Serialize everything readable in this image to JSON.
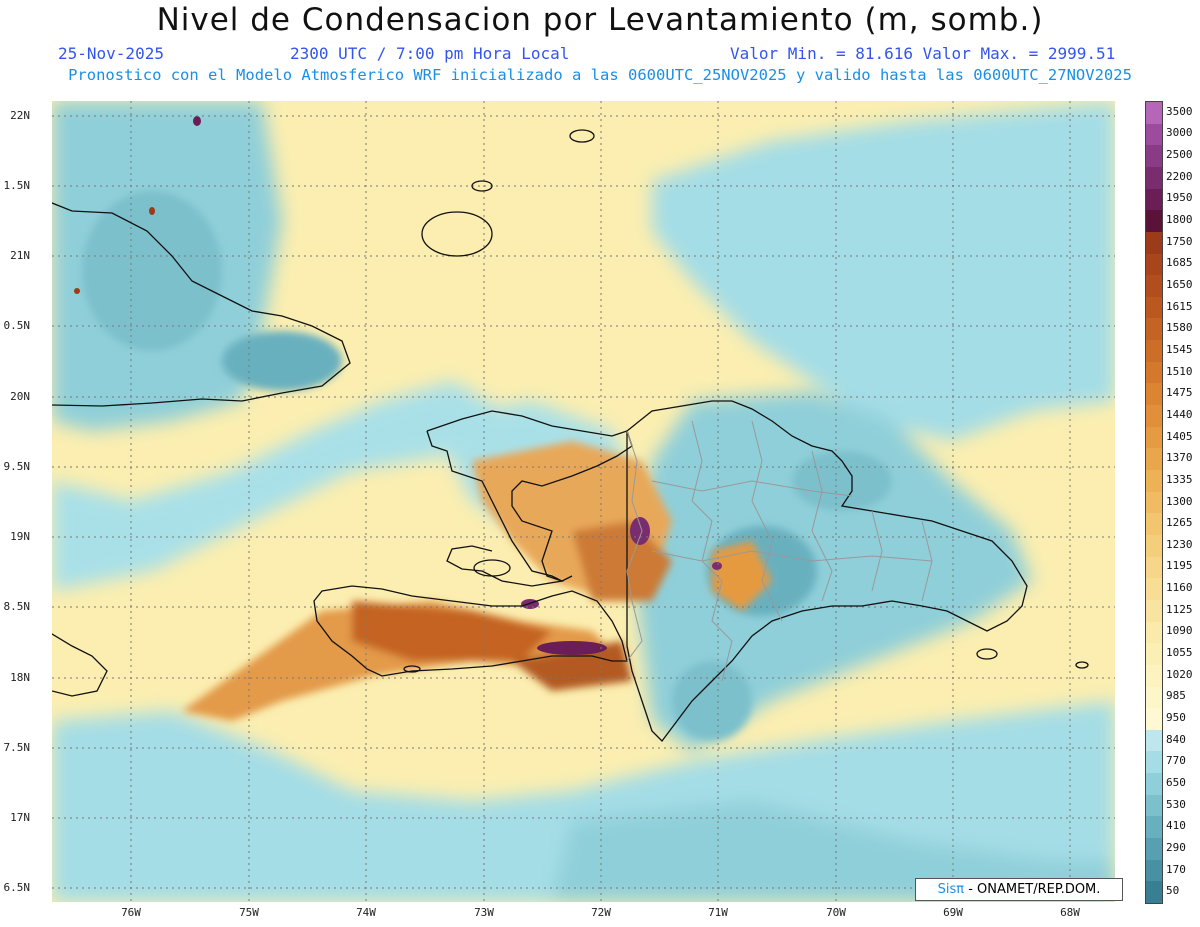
{
  "header": {
    "title": "Nivel de Condensacion por Levantamiento (m, somb.)",
    "date": "25-Nov-2025",
    "time": "2300 UTC / 7:00 pm Hora Local",
    "minmax": "Valor Min. = 81.616  Valor Max. = 2999.51",
    "subtitle": "Pronostico con el Modelo Atmosferico WRF inicializado a las 0600UTC_25NOV2025 y valido hasta las  0600UTC_27NOV2025"
  },
  "axes": {
    "lat_labels": [
      "22N",
      "1.5N",
      "21N",
      "0.5N",
      "20N",
      "9.5N",
      "19N",
      "8.5N",
      "18N",
      "7.5N",
      "17N",
      "6.5N"
    ],
    "lon_labels": [
      "76W",
      "75W",
      "74W",
      "73W",
      "72W",
      "71W",
      "70W",
      "69W",
      "68W"
    ]
  },
  "legend": {
    "labels": [
      "3500",
      "3000",
      "2500",
      "2200",
      "1950",
      "1800",
      "1750",
      "1685",
      "1650",
      "1615",
      "1580",
      "1545",
      "1510",
      "1475",
      "1440",
      "1405",
      "1370",
      "1335",
      "1300",
      "1265",
      "1230",
      "1195",
      "1160",
      "1125",
      "1090",
      "1055",
      "1020",
      "985",
      "950",
      "840",
      "770",
      "650",
      "530",
      "410",
      "290",
      "170",
      "50"
    ],
    "colors": [
      "#b566b8",
      "#9c4b9e",
      "#8a3b86",
      "#7a2d6e",
      "#6a1e55",
      "#5a1238",
      "#9c3b1a",
      "#a8451b",
      "#b24e1d",
      "#bb5820",
      "#c46323",
      "#cc6e27",
      "#d4792c",
      "#db8432",
      "#e18f39",
      "#e69a41",
      "#eaa64b",
      "#eeb156",
      "#f1bb62",
      "#f3c56f",
      "#f5ce7c",
      "#f7d689",
      "#f8dd95",
      "#f9e3a0",
      "#faeaab",
      "#fbefb5",
      "#fcf3bf",
      "#fdf6c8",
      "#fef9d2",
      "#bde7ec",
      "#a4dde6",
      "#8fcfd9",
      "#7cc0cc",
      "#69b0bf",
      "#58a0b1",
      "#4890a3",
      "#387f94"
    ]
  },
  "credit": {
    "sis": "Sisπ",
    "rest": " - ONAMET/REP.DOM."
  },
  "colors": {
    "header_blue": "#3355ee",
    "subtitle_blue": "#1a8fe6",
    "ocean_yellow": "#fbeeb0",
    "cyan": "#9fd9e3",
    "orange": "#d98c3c"
  }
}
